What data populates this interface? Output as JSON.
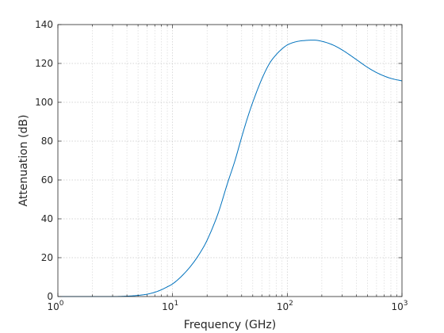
{
  "chart_data": {
    "type": "line",
    "xlabel": "Frequency (GHz)",
    "ylabel": "Attenuation (dB)",
    "x_scale": "log",
    "xlim": [
      1,
      1000
    ],
    "ylim": [
      0,
      140
    ],
    "grid": true,
    "legend": "none",
    "x_tick_labels": [
      {
        "base": "10",
        "exp": "0"
      },
      {
        "base": "10",
        "exp": "1"
      },
      {
        "base": "10",
        "exp": "2"
      },
      {
        "base": "10",
        "exp": "3"
      }
    ],
    "y_tick_labels": [
      "0",
      "20",
      "40",
      "60",
      "80",
      "100",
      "120",
      "140"
    ],
    "series": [
      {
        "color": "#0072bd",
        "x": [
          1,
          2,
          3,
          4,
          5,
          6,
          7,
          8,
          9,
          10,
          12,
          15,
          18,
          20,
          25,
          30,
          35,
          40,
          45,
          50,
          60,
          70,
          80,
          90,
          100,
          120,
          150,
          170,
          200,
          250,
          300,
          400,
          500,
          600,
          700,
          800,
          1000
        ],
        "y": [
          0,
          0,
          0,
          0.2,
          0.6,
          1.2,
          2.2,
          3.5,
          5,
          6.5,
          10.5,
          17,
          24,
          29,
          43,
          58,
          70,
          82,
          92,
          100,
          112,
          120,
          124.5,
          127.5,
          129.5,
          131.2,
          131.9,
          132,
          131.4,
          129.5,
          127,
          122,
          118,
          115.3,
          113.5,
          112.3,
          111
        ]
      }
    ]
  }
}
